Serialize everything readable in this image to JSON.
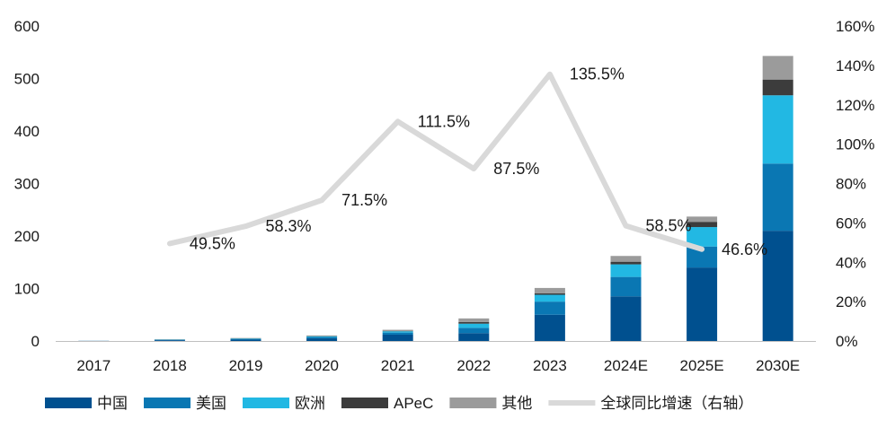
{
  "chart_data": {
    "type": "bar",
    "stacked": true,
    "categories": [
      "2017",
      "2018",
      "2019",
      "2020",
      "2021",
      "2022",
      "2023",
      "2024E",
      "2025E",
      "2030E"
    ],
    "series": [
      {
        "name": "中国",
        "color": "#00508F",
        "values": [
          0.2,
          1.5,
          2.5,
          5,
          12,
          15,
          50,
          85,
          140,
          210
        ]
      },
      {
        "name": "美国",
        "color": "#0A77B3",
        "values": [
          0.1,
          0.8,
          1.5,
          2.5,
          4,
          10,
          25,
          37,
          40,
          128
        ]
      },
      {
        "name": "欧洲",
        "color": "#22B8E3",
        "values": [
          0.05,
          0.5,
          0.8,
          1.5,
          2.5,
          8,
          13,
          24,
          37,
          130
        ]
      },
      {
        "name": "APeC",
        "color": "#3C3C3C",
        "values": [
          0.02,
          0.2,
          0.3,
          0.5,
          0.8,
          3,
          3,
          5,
          10,
          30
        ]
      },
      {
        "name": "其他",
        "color": "#9B9B9B",
        "values": [
          0.03,
          0.5,
          0.6,
          1,
          2,
          7,
          10,
          11,
          10,
          45
        ]
      }
    ],
    "line_series": {
      "name": "全球同比增速（右轴）",
      "color": "#D9D9D9",
      "axis": "right",
      "values": [
        null,
        49.5,
        58.3,
        71.5,
        111.5,
        87.5,
        135.5,
        58.5,
        46.6,
        null
      ],
      "labels": [
        null,
        "49.5%",
        "58.3%",
        "71.5%",
        "111.5%",
        "87.5%",
        "135.5%",
        "58.5%",
        "46.6%",
        null
      ]
    },
    "y_left": {
      "min": 0,
      "max": 600,
      "ticks": [
        "0",
        "100",
        "200",
        "300",
        "400",
        "500",
        "600"
      ]
    },
    "y_right": {
      "min": 0,
      "max": 160,
      "ticks": [
        "0%",
        "20%",
        "40%",
        "60%",
        "80%",
        "100%",
        "120%",
        "140%",
        "160%"
      ]
    },
    "title": "",
    "xlabel": "",
    "ylabel": "",
    "grid": false,
    "legend_position": "bottom"
  }
}
